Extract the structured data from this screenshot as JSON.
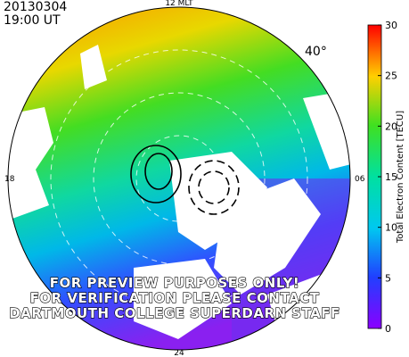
{
  "timestamp": {
    "date": "20130304",
    "time": "19:00 UT"
  },
  "map": {
    "mlt_labels": {
      "top": "12 MLT",
      "left": "18",
      "right": "06",
      "bottom": "24"
    },
    "latitude_label": "40°"
  },
  "colorbar": {
    "label": "Total Electron Content [TECU]",
    "lim": [
      0,
      30
    ],
    "ticks": [
      0,
      5,
      10,
      15,
      20,
      25,
      30
    ]
  },
  "watermark": [
    "FOR PREVIEW PURPOSES ONLY!",
    "FOR VERIFICATION PLEASE CONTACT",
    "DARTMOUTH COLLEGE SUPERDARN STAFF"
  ]
}
